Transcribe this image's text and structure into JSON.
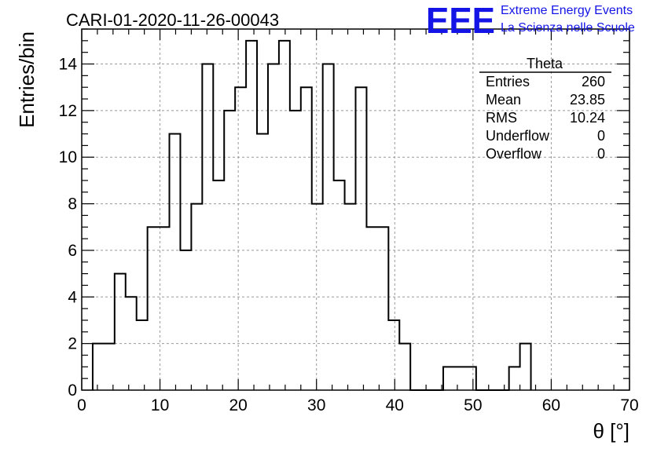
{
  "title": "CARI-01-2020-11-26-00043",
  "logo": {
    "mark": "EEE",
    "line1": "Extreme Energy Events",
    "line2": "La Scienza nelle Scuole"
  },
  "stats_box": {
    "name": "Theta",
    "rows": [
      {
        "label": "Entries",
        "value": "260"
      },
      {
        "label": "Mean",
        "value": "23.85"
      },
      {
        "label": "RMS",
        "value": "10.24"
      },
      {
        "label": "Underflow",
        "value": "0"
      },
      {
        "label": "Overflow",
        "value": "0"
      }
    ]
  },
  "colors": {
    "accent": "#1414e6",
    "line": "#000000",
    "grid": "#999999"
  },
  "chart_data": {
    "type": "histogram",
    "xlabel": "θ [°]",
    "ylabel": "Entries/bin",
    "xlim": [
      0,
      70
    ],
    "ylim": [
      0,
      15.5
    ],
    "grid": true,
    "x_ticks": [
      0,
      10,
      20,
      30,
      40,
      50,
      60,
      70
    ],
    "y_ticks": [
      0,
      2,
      4,
      6,
      8,
      10,
      12,
      14
    ],
    "bin_edges": [
      1.4,
      2.8,
      4.2,
      5.6,
      7.0,
      8.4,
      9.8,
      11.2,
      12.6,
      14.0,
      15.4,
      16.8,
      18.2,
      19.6,
      21.0,
      22.4,
      23.8,
      25.2,
      26.6,
      28.0,
      29.4,
      30.8,
      32.2,
      33.6,
      35.0,
      36.4,
      37.8,
      39.2,
      40.6,
      42.0,
      43.4,
      44.8,
      46.2,
      47.6,
      49.0,
      50.4,
      51.8,
      53.2,
      54.6,
      56.0,
      57.4
    ],
    "counts": [
      2,
      2,
      5,
      4,
      3,
      7,
      7,
      11,
      6,
      8,
      14,
      9,
      12,
      13,
      15,
      11,
      14,
      15,
      12,
      13,
      8,
      14,
      9,
      8,
      13,
      7,
      7,
      3,
      2,
      0,
      0,
      0,
      1,
      1,
      1,
      0,
      0,
      0,
      1,
      2
    ]
  }
}
